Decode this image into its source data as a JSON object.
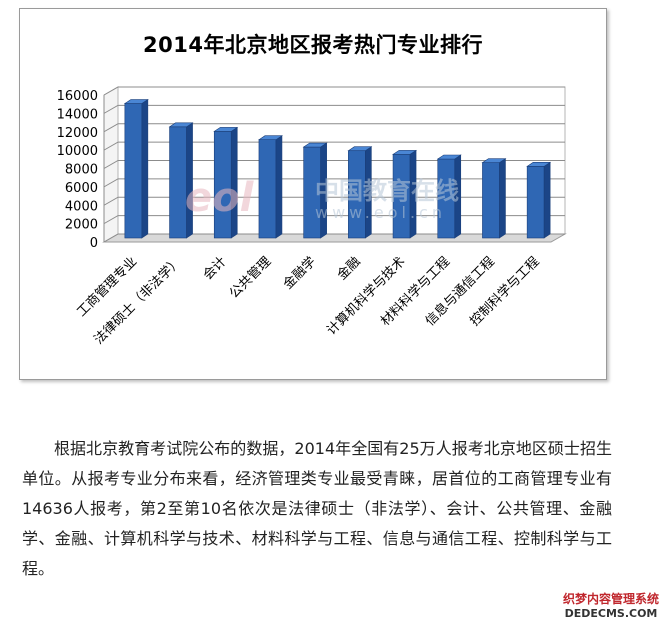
{
  "chart_data": {
    "type": "bar",
    "title": "2014年北京地区报考热门专业排行",
    "categories": [
      "工商管理专业",
      "法律硕士（非法学）",
      "会计",
      "公共管理",
      "金融学",
      "金融",
      "计算机科学与技术",
      "材料科学与工程",
      "信息与通信工程",
      "控制科学与工程"
    ],
    "values": [
      14636,
      12100,
      11600,
      10700,
      9900,
      9500,
      9100,
      8600,
      8200,
      7800
    ],
    "ylim": [
      0,
      16000
    ],
    "yticks": [
      "0",
      "2000",
      "4000",
      "6000",
      "8000",
      "10000",
      "12000",
      "14000",
      "16000"
    ],
    "grid": true,
    "legend": "none",
    "bar_color": "#2f67b4",
    "bar_dark": "#1b4587",
    "bar_light": "#4a86d4"
  },
  "watermark": {
    "logo": "eol",
    "text": "中国教育在线",
    "url": "www.eol.cn"
  },
  "article": {
    "text": "根据北京教育考试院公布的数据，2014年全国有25万人报考北京地区硕士招生单位。从报考专业分布来看，经济管理类专业最受青睐，居首位的工商管理专业有14636人报考，第2至第10名依次是法律硕士（非法学）、会计、公共管理、金融学、金融、计算机科学与技术、材料科学与工程、信息与通信工程、控制科学与工程。"
  },
  "site_mark": {
    "cn": "织梦内容管理系统",
    "en": "DEDECMS.COM"
  }
}
